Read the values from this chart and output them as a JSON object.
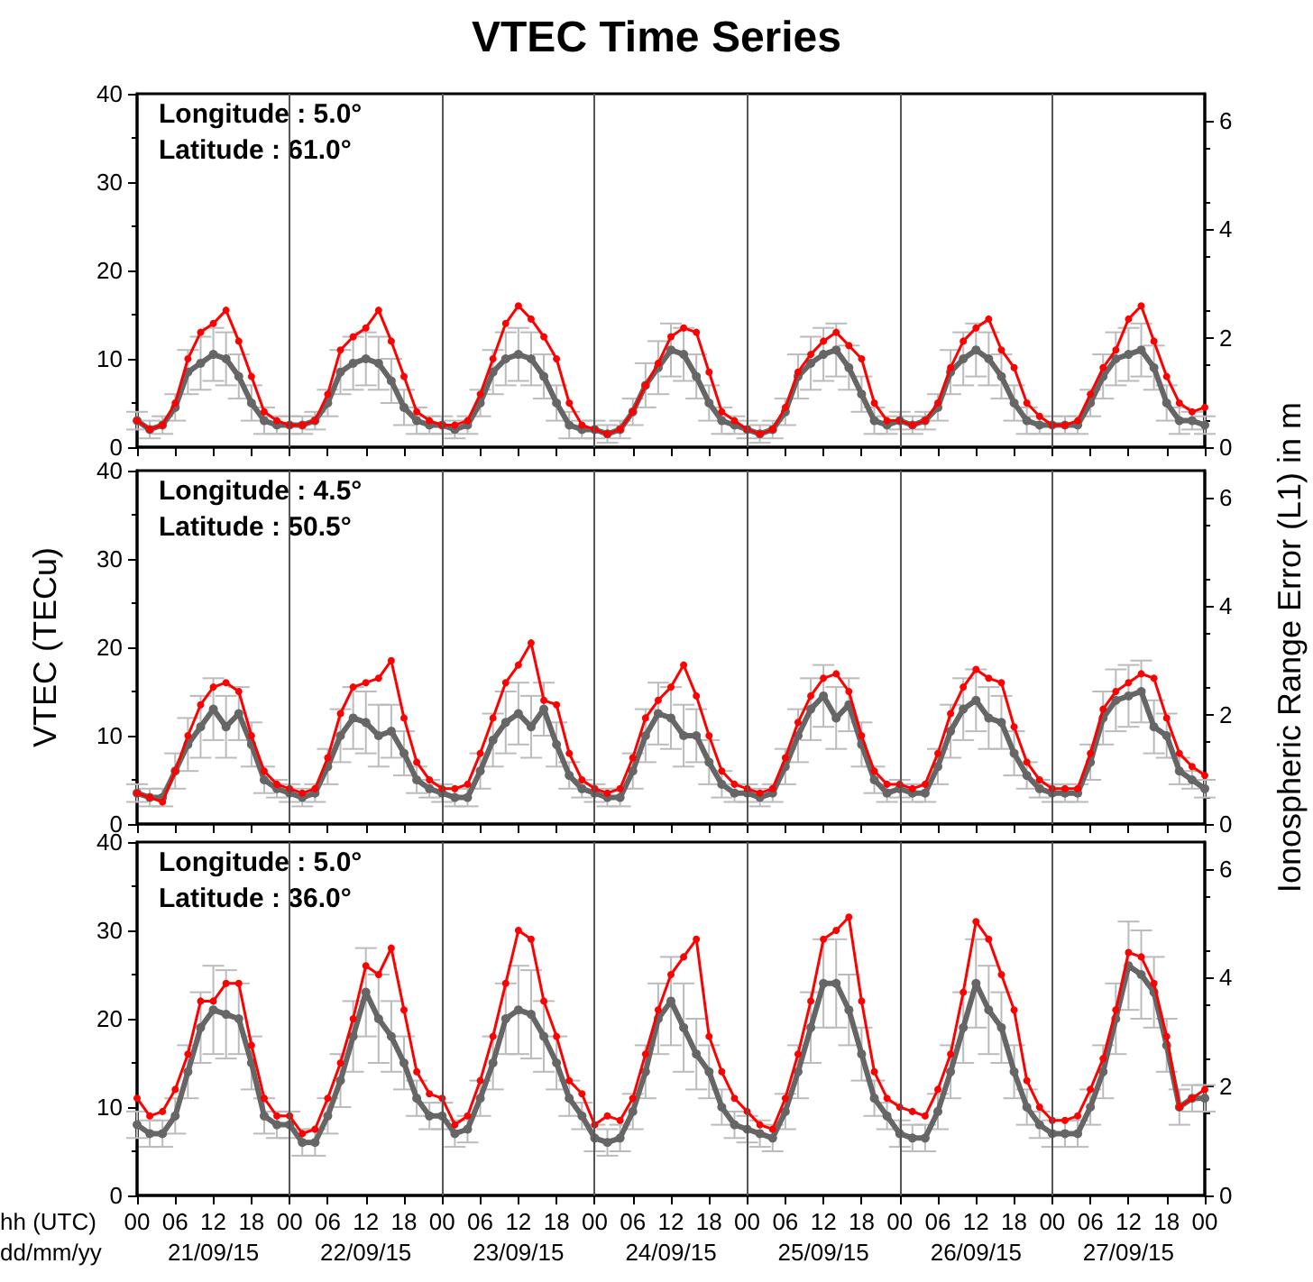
{
  "chart_data": [
    {
      "type": "line",
      "title": "VTEC Time Series",
      "x": [
        "--09-21T00:00",
        "--09-21T02:00",
        "--09-21T04:00",
        "--09-21T06:00",
        "--09-21T08:00",
        "--09-21T10:00",
        "--09-21T12:00",
        "--09-21T14:00",
        "--09-21T16:00",
        "--09-21T18:00",
        "--09-21T20:00",
        "--09-21T22:00",
        "--09-22T00:00",
        "--09-22T02:00",
        "--09-22T04:00",
        "--09-22T06:00",
        "--09-22T08:00",
        "--09-22T10:00",
        "--09-22T12:00",
        "--09-22T14:00",
        "--09-22T16:00",
        "--09-22T18:00",
        "--09-22T20:00",
        "--09-22T22:00",
        "--09-23T00:00",
        "--09-23T02:00",
        "--09-23T04:00",
        "--09-23T06:00",
        "--09-23T08:00",
        "--09-23T10:00",
        "--09-23T12:00",
        "--09-23T14:00",
        "--09-23T16:00",
        "--09-23T18:00",
        "--09-23T20:00",
        "--09-23T22:00",
        "--09-24T00:00",
        "--09-24T02:00",
        "--09-24T04:00",
        "--09-24T06:00",
        "--09-24T08:00",
        "--09-24T10:00",
        "--09-24T12:00",
        "--09-24T14:00",
        "--09-24T16:00",
        "--09-24T18:00",
        "--09-24T20:00",
        "--09-24T22:00",
        "--09-25T00:00",
        "--09-25T02:00",
        "--09-25T04:00",
        "--09-25T06:00",
        "--09-25T08:00",
        "--09-25T10:00",
        "--09-25T12:00",
        "--09-25T14:00",
        "--09-25T16:00",
        "--09-25T18:00",
        "--09-25T20:00",
        "--09-25T22:00",
        "--09-26T00:00",
        "--09-26T02:00",
        "--09-26T04:00",
        "--09-26T06:00",
        "--09-26T08:00",
        "--09-26T10:00",
        "--09-26T12:00",
        "--09-26T14:00",
        "--09-26T16:00",
        "--09-26T18:00",
        "--09-26T20:00",
        "--09-26T22:00",
        "--09-27T00:00",
        "--09-27T02:00",
        "--09-27T04:00",
        "--09-27T06:00",
        "--09-27T08:00",
        "--09-27T10:00",
        "--09-27T12:00",
        "--09-27T14:00",
        "--09-27T16:00",
        "--09-27T18:00",
        "--09-27T20:00",
        "--09-27T22:00",
        "--09-28T00:00"
      ],
      "series": [
        {
          "color": "#666666",
          "values": [
            3,
            2,
            2.5,
            4.5,
            8.5,
            9.5,
            10.5,
            10,
            8,
            5,
            3,
            2.5,
            2.5,
            2.5,
            3,
            5,
            8.5,
            9.5,
            10,
            9.5,
            7.5,
            4.5,
            3,
            2.5,
            2.5,
            2,
            2.5,
            5,
            8.5,
            10,
            10.5,
            10,
            8,
            5,
            2.5,
            2,
            2,
            1.5,
            2,
            4,
            7,
            9,
            11,
            10.5,
            8,
            5,
            3,
            2.5,
            2,
            1.5,
            2,
            4,
            8,
            9.5,
            10.5,
            11,
            9,
            6,
            3,
            2.5,
            3,
            2.5,
            3,
            4.5,
            8.5,
            10,
            11,
            10,
            8,
            5,
            3,
            2.5,
            2.5,
            2.5,
            2.5,
            5,
            8,
            10,
            10.5,
            11,
            9,
            5,
            3,
            3,
            2.5
          ],
          "errors": [
            1,
            1,
            1,
            1.5,
            2.5,
            3,
            3,
            3,
            2.5,
            2,
            1.5,
            1,
            1,
            1,
            1,
            1.5,
            2.5,
            3,
            3,
            3,
            2.5,
            2,
            1.5,
            1,
            1,
            1,
            1,
            1.5,
            2.5,
            3,
            3,
            3,
            2.5,
            2,
            1.5,
            1,
            1,
            1,
            1,
            1.5,
            2.5,
            3,
            3,
            3,
            2.5,
            2,
            1.5,
            1,
            1,
            1,
            1,
            1.5,
            2.5,
            3,
            3,
            3,
            2.5,
            2,
            1.5,
            1,
            1,
            1,
            1,
            1.5,
            2.5,
            3,
            3,
            3,
            2.5,
            2,
            1.5,
            1,
            1,
            1,
            1,
            1.5,
            2.5,
            3,
            3,
            3,
            2.5,
            2,
            1.5,
            1,
            1
          ]
        },
        {
          "color": "#ff0000",
          "values": [
            3,
            2,
            2.5,
            5,
            10,
            13,
            14,
            15.5,
            12,
            8,
            4,
            3,
            2.5,
            2.5,
            3,
            6,
            11,
            12.5,
            13.5,
            15.5,
            12,
            8,
            4,
            3,
            2.5,
            2.5,
            3,
            6,
            10,
            14,
            16,
            14.5,
            12.5,
            10,
            5,
            2.5,
            2,
            1.5,
            2,
            4,
            7,
            9.5,
            12.5,
            13.5,
            13,
            8.5,
            4,
            3,
            2,
            1.5,
            2,
            4.5,
            8.5,
            10.5,
            12,
            13,
            11.5,
            10,
            5,
            3,
            3,
            2.5,
            3,
            5,
            9,
            12,
            13.5,
            14.5,
            11,
            9,
            5,
            3.5,
            2.5,
            2.5,
            3,
            6,
            9,
            11,
            14.5,
            16,
            12,
            8,
            5,
            4,
            4.5
          ]
        }
      ],
      "ylim": [
        0,
        40
      ],
      "yticks": [
        0,
        10,
        20,
        30,
        40
      ],
      "y2lim": [
        0,
        6.49
      ],
      "y2ticks": [
        0,
        2,
        4,
        6
      ],
      "xlim": [
        "--09-21T00:00",
        "--09-28T00:00"
      ],
      "xticks": [
        "--09-21T00:00",
        "--09-21T06:00",
        "--09-21T12:00",
        "--09-21T18:00",
        "--09-22T00:00",
        "--09-22T06:00",
        "--09-22T12:00",
        "--09-22T18:00",
        "--09-23T00:00",
        "--09-23T06:00",
        "--09-23T12:00",
        "--09-23T18:00",
        "--09-24T00:00",
        "--09-24T06:00",
        "--09-24T12:00",
        "--09-24T18:00",
        "--09-25T00:00",
        "--09-25T06:00",
        "--09-25T12:00",
        "--09-25T18:00",
        "--09-26T00:00",
        "--09-26T06:00",
        "--09-26T12:00",
        "--09-26T18:00",
        "--09-27T00:00",
        "--09-27T06:00",
        "--09-27T12:00",
        "--09-27T18:00",
        "--09-28T00:00"
      ],
      "tick_labels": "y",
      "marker": "circle",
      "line_style": "solid",
      "ref_lines": [
        {
          "axis": "x",
          "value": "--09-22T00:00"
        },
        {
          "axis": "x",
          "value": "--09-23T00:00"
        },
        {
          "axis": "x",
          "value": "--09-24T00:00"
        },
        {
          "axis": "x",
          "value": "--09-25T00:00"
        },
        {
          "axis": "x",
          "value": "--09-26T00:00"
        },
        {
          "axis": "x",
          "value": "--09-27T00:00"
        }
      ],
      "annotations": [
        "Longitude : 5.0°",
        "Latitude : 61.0°"
      ]
    },
    {
      "type": "line",
      "ylabel": "VTEC (TECu)",
      "y2label": "Ionospheric Range Error (L1) in m",
      "x": [
        "--09-21T00:00",
        "--09-21T02:00",
        "--09-21T04:00",
        "--09-21T06:00",
        "--09-21T08:00",
        "--09-21T10:00",
        "--09-21T12:00",
        "--09-21T14:00",
        "--09-21T16:00",
        "--09-21T18:00",
        "--09-21T20:00",
        "--09-21T22:00",
        "--09-22T00:00",
        "--09-22T02:00",
        "--09-22T04:00",
        "--09-22T06:00",
        "--09-22T08:00",
        "--09-22T10:00",
        "--09-22T12:00",
        "--09-22T14:00",
        "--09-22T16:00",
        "--09-22T18:00",
        "--09-22T20:00",
        "--09-22T22:00",
        "--09-23T00:00",
        "--09-23T02:00",
        "--09-23T04:00",
        "--09-23T06:00",
        "--09-23T08:00",
        "--09-23T10:00",
        "--09-23T12:00",
        "--09-23T14:00",
        "--09-23T16:00",
        "--09-23T18:00",
        "--09-23T20:00",
        "--09-23T22:00",
        "--09-24T00:00",
        "--09-24T02:00",
        "--09-24T04:00",
        "--09-24T06:00",
        "--09-24T08:00",
        "--09-24T10:00",
        "--09-24T12:00",
        "--09-24T14:00",
        "--09-24T16:00",
        "--09-24T18:00",
        "--09-24T20:00",
        "--09-24T22:00",
        "--09-25T00:00",
        "--09-25T02:00",
        "--09-25T04:00",
        "--09-25T06:00",
        "--09-25T08:00",
        "--09-25T10:00",
        "--09-25T12:00",
        "--09-25T14:00",
        "--09-25T16:00",
        "--09-25T18:00",
        "--09-25T20:00",
        "--09-25T22:00",
        "--09-26T00:00",
        "--09-26T02:00",
        "--09-26T04:00",
        "--09-26T06:00",
        "--09-26T08:00",
        "--09-26T10:00",
        "--09-26T12:00",
        "--09-26T14:00",
        "--09-26T16:00",
        "--09-26T18:00",
        "--09-26T20:00",
        "--09-26T22:00",
        "--09-27T00:00",
        "--09-27T02:00",
        "--09-27T04:00",
        "--09-27T06:00",
        "--09-27T08:00",
        "--09-27T10:00",
        "--09-27T12:00",
        "--09-27T14:00",
        "--09-27T16:00",
        "--09-27T18:00",
        "--09-27T20:00",
        "--09-27T22:00",
        "--09-28T00:00"
      ],
      "series": [
        {
          "color": "#666666",
          "values": [
            3.5,
            3,
            3,
            6,
            9,
            11,
            13,
            11,
            12.5,
            9,
            5,
            4,
            3.5,
            3,
            3.5,
            6.5,
            10,
            12,
            11.5,
            10,
            10.5,
            8,
            5,
            4,
            3.5,
            3,
            3,
            6,
            9.5,
            11.5,
            12.5,
            11,
            13,
            9,
            5.5,
            4,
            3.5,
            3,
            3,
            6,
            10,
            12.5,
            12,
            10,
            10,
            7,
            4.5,
            3.5,
            3.5,
            3,
            3.5,
            6.5,
            10,
            13,
            14.5,
            12,
            13.5,
            9,
            5,
            3.5,
            4,
            3.5,
            3.5,
            6.5,
            10.5,
            13,
            14,
            12,
            11.5,
            8,
            5.5,
            4,
            3.5,
            3.5,
            3.5,
            7,
            12,
            14,
            14.5,
            15,
            11,
            10,
            6,
            5,
            4
          ],
          "errors": [
            1,
            1,
            1,
            2,
            3,
            3.5,
            3.5,
            3.5,
            3,
            2.5,
            1.5,
            1,
            1,
            1,
            1,
            2,
            3,
            3.5,
            3.5,
            3.5,
            3,
            2.5,
            1.5,
            1,
            1,
            1,
            1,
            2,
            3,
            3.5,
            3.5,
            3.5,
            3,
            2.5,
            1.5,
            1,
            1,
            1,
            1,
            2,
            3,
            3.5,
            3.5,
            3.5,
            3,
            2.5,
            1.5,
            1,
            1,
            1,
            1,
            2,
            3,
            3.5,
            3.5,
            3.5,
            3,
            2.5,
            1.5,
            1,
            1,
            1,
            1,
            2,
            3,
            3.5,
            3.5,
            3.5,
            3,
            2.5,
            1.5,
            1,
            1,
            1,
            1,
            2,
            3,
            3.5,
            3.5,
            3.5,
            3,
            2.5,
            1.5,
            1,
            1
          ]
        },
        {
          "color": "#ff0000",
          "values": [
            3.5,
            3,
            2.5,
            6,
            10,
            13.5,
            15.5,
            16,
            15,
            10,
            6,
            4.5,
            4,
            3.5,
            4,
            7.5,
            12.5,
            15.5,
            16,
            16.5,
            18.5,
            12,
            7,
            5,
            4,
            4,
            4.5,
            8,
            12,
            16,
            18,
            20.5,
            14,
            13.5,
            8,
            5,
            4,
            3.5,
            4,
            7.5,
            12,
            14,
            15.5,
            18,
            14.5,
            10,
            6,
            4.5,
            4,
            3.5,
            4,
            7.5,
            11.5,
            14.5,
            16.5,
            17,
            15,
            10,
            6,
            4.5,
            4.5,
            4,
            4.5,
            8,
            12.5,
            15.5,
            17.5,
            16.5,
            16,
            11,
            7,
            5,
            4,
            4,
            4,
            8,
            13,
            15,
            16,
            17,
            16.5,
            12,
            8,
            6.5,
            5.5
          ]
        }
      ],
      "ylim": [
        0,
        40
      ],
      "yticks": [
        0,
        10,
        20,
        30,
        40
      ],
      "y2lim": [
        0,
        6.49
      ],
      "y2ticks": [
        0,
        2,
        4,
        6
      ],
      "xlim": [
        "--09-21T00:00",
        "--09-28T00:00"
      ],
      "xticks": [
        "--09-21T00:00",
        "--09-21T06:00",
        "--09-21T12:00",
        "--09-21T18:00",
        "--09-22T00:00",
        "--09-22T06:00",
        "--09-22T12:00",
        "--09-22T18:00",
        "--09-23T00:00",
        "--09-23T06:00",
        "--09-23T12:00",
        "--09-23T18:00",
        "--09-24T00:00",
        "--09-24T06:00",
        "--09-24T12:00",
        "--09-24T18:00",
        "--09-25T00:00",
        "--09-25T06:00",
        "--09-25T12:00",
        "--09-25T18:00",
        "--09-26T00:00",
        "--09-26T06:00",
        "--09-26T12:00",
        "--09-26T18:00",
        "--09-27T00:00",
        "--09-27T06:00",
        "--09-27T12:00",
        "--09-27T18:00",
        "--09-28T00:00"
      ],
      "tick_labels": "y",
      "marker": "circle",
      "line_style": "solid",
      "ref_lines": [
        {
          "axis": "x",
          "value": "--09-22T00:00"
        },
        {
          "axis": "x",
          "value": "--09-23T00:00"
        },
        {
          "axis": "x",
          "value": "--09-24T00:00"
        },
        {
          "axis": "x",
          "value": "--09-25T00:00"
        },
        {
          "axis": "x",
          "value": "--09-26T00:00"
        },
        {
          "axis": "x",
          "value": "--09-27T00:00"
        }
      ],
      "annotations": [
        "Longitude : 4.5°",
        "Latitude : 50.5°"
      ]
    },
    {
      "type": "line",
      "x": [
        "--09-21T00:00",
        "--09-21T02:00",
        "--09-21T04:00",
        "--09-21T06:00",
        "--09-21T08:00",
        "--09-21T10:00",
        "--09-21T12:00",
        "--09-21T14:00",
        "--09-21T16:00",
        "--09-21T18:00",
        "--09-21T20:00",
        "--09-21T22:00",
        "--09-22T00:00",
        "--09-22T02:00",
        "--09-22T04:00",
        "--09-22T06:00",
        "--09-22T08:00",
        "--09-22T10:00",
        "--09-22T12:00",
        "--09-22T14:00",
        "--09-22T16:00",
        "--09-22T18:00",
        "--09-22T20:00",
        "--09-22T22:00",
        "--09-23T00:00",
        "--09-23T02:00",
        "--09-23T04:00",
        "--09-23T06:00",
        "--09-23T08:00",
        "--09-23T10:00",
        "--09-23T12:00",
        "--09-23T14:00",
        "--09-23T16:00",
        "--09-23T18:00",
        "--09-23T20:00",
        "--09-23T22:00",
        "--09-24T00:00",
        "--09-24T02:00",
        "--09-24T04:00",
        "--09-24T06:00",
        "--09-24T08:00",
        "--09-24T10:00",
        "--09-24T12:00",
        "--09-24T14:00",
        "--09-24T16:00",
        "--09-24T18:00",
        "--09-24T20:00",
        "--09-24T22:00",
        "--09-25T00:00",
        "--09-25T02:00",
        "--09-25T04:00",
        "--09-25T06:00",
        "--09-25T08:00",
        "--09-25T10:00",
        "--09-25T12:00",
        "--09-25T14:00",
        "--09-25T16:00",
        "--09-25T18:00",
        "--09-25T20:00",
        "--09-25T22:00",
        "--09-26T00:00",
        "--09-26T02:00",
        "--09-26T04:00",
        "--09-26T06:00",
        "--09-26T08:00",
        "--09-26T10:00",
        "--09-26T12:00",
        "--09-26T14:00",
        "--09-26T16:00",
        "--09-26T18:00",
        "--09-26T20:00",
        "--09-26T22:00",
        "--09-27T00:00",
        "--09-27T02:00",
        "--09-27T04:00",
        "--09-27T06:00",
        "--09-27T08:00",
        "--09-27T10:00",
        "--09-27T12:00",
        "--09-27T14:00",
        "--09-27T16:00",
        "--09-27T18:00",
        "--09-27T20:00",
        "--09-27T22:00",
        "--09-28T00:00"
      ],
      "series": [
        {
          "color": "#666666",
          "values": [
            8,
            7,
            7,
            9,
            14,
            19,
            21,
            20.5,
            20,
            15,
            9,
            8,
            8,
            6,
            6,
            9,
            13,
            18,
            23,
            20,
            18,
            15,
            11,
            9,
            9,
            7,
            7.5,
            11,
            15,
            20,
            21,
            20.5,
            18,
            15,
            11,
            9,
            6.5,
            6,
            6.5,
            9.5,
            14,
            20,
            22,
            19,
            16,
            14,
            10,
            8,
            7.5,
            7,
            6.5,
            9.5,
            14,
            19,
            24,
            24,
            21,
            16,
            11,
            9,
            7,
            6.5,
            6.5,
            9.5,
            14,
            19,
            24,
            21,
            19,
            14,
            10,
            8,
            7,
            7,
            7,
            10,
            14,
            20,
            26,
            25,
            23,
            17,
            10,
            11,
            11
          ],
          "errors": [
            1.5,
            1.5,
            1.5,
            2,
            3,
            4,
            5,
            5,
            4,
            3,
            2,
            1.5,
            1.5,
            1.5,
            1.5,
            2,
            3,
            4,
            5,
            5,
            4,
            3,
            2,
            1.5,
            1.5,
            1.5,
            1.5,
            2,
            3,
            4,
            5,
            5,
            4,
            3,
            2,
            1.5,
            1.5,
            1.5,
            1.5,
            2,
            3,
            4,
            5,
            5,
            4,
            3,
            2,
            1.5,
            1.5,
            1.5,
            1.5,
            2,
            3,
            4,
            5,
            5,
            4,
            3,
            2,
            1.5,
            1.5,
            1.5,
            1.5,
            2,
            3,
            4,
            5,
            5,
            4,
            3,
            2,
            1.5,
            1.5,
            1.5,
            1.5,
            2,
            3,
            4,
            5,
            5,
            4,
            3,
            2,
            1.5,
            1.5
          ]
        },
        {
          "color": "#ff0000",
          "values": [
            11,
            9,
            9.5,
            12,
            16,
            22,
            22,
            24,
            24,
            17,
            11,
            9,
            9,
            7,
            7.5,
            11,
            15,
            20,
            26,
            25,
            28,
            21,
            14,
            11.5,
            11,
            8,
            9,
            13,
            18,
            24,
            30,
            29,
            22,
            18,
            13,
            11.5,
            8,
            9,
            8.5,
            11,
            16,
            21,
            25,
            27,
            29,
            18,
            14,
            11,
            9.5,
            8,
            7.5,
            11,
            16,
            22,
            29,
            30,
            31.5,
            22,
            14,
            11,
            10,
            9.5,
            9,
            12,
            16,
            23,
            31,
            29,
            25,
            21,
            13,
            10,
            8.5,
            8.5,
            9,
            12,
            15.5,
            21,
            27.5,
            27,
            24,
            18,
            10,
            11,
            12
          ]
        }
      ],
      "ylim": [
        0,
        40
      ],
      "yticks": [
        0,
        10,
        20,
        30,
        40
      ],
      "y2lim": [
        0,
        6.49
      ],
      "y2ticks": [
        0,
        2,
        4,
        6
      ],
      "xlim": [
        "--09-21T00:00",
        "--09-28T00:00"
      ],
      "xticks": [
        {
          "value": "--09-21T00:00",
          "label": "00"
        },
        {
          "value": "--09-21T06:00",
          "label": "06"
        },
        {
          "value": "--09-21T12:00",
          "label": "12\n21/09/15"
        },
        {
          "value": "--09-21T18:00",
          "label": "18"
        },
        {
          "value": "--09-22T00:00",
          "label": "00"
        },
        {
          "value": "--09-22T06:00",
          "label": "06"
        },
        {
          "value": "--09-22T12:00",
          "label": "12\n22/09/15"
        },
        {
          "value": "--09-22T18:00",
          "label": "18"
        },
        {
          "value": "--09-23T00:00",
          "label": "00"
        },
        {
          "value": "--09-23T06:00",
          "label": "06"
        },
        {
          "value": "--09-23T12:00",
          "label": "12\n23/09/15"
        },
        {
          "value": "--09-23T18:00",
          "label": "18"
        },
        {
          "value": "--09-24T00:00",
          "label": "00"
        },
        {
          "value": "--09-24T06:00",
          "label": "06"
        },
        {
          "value": "--09-24T12:00",
          "label": "12\n24/09/15"
        },
        {
          "value": "--09-24T18:00",
          "label": "18"
        },
        {
          "value": "--09-25T00:00",
          "label": "00"
        },
        {
          "value": "--09-25T06:00",
          "label": "06"
        },
        {
          "value": "--09-25T12:00",
          "label": "12\n25/09/15"
        },
        {
          "value": "--09-25T18:00",
          "label": "18"
        },
        {
          "value": "--09-26T00:00",
          "label": "00"
        },
        {
          "value": "--09-26T06:00",
          "label": "06"
        },
        {
          "value": "--09-26T12:00",
          "label": "12\n26/09/15"
        },
        {
          "value": "--09-26T18:00",
          "label": "18"
        },
        {
          "value": "--09-27T00:00",
          "label": "00"
        },
        {
          "value": "--09-27T06:00",
          "label": "06"
        },
        {
          "value": "--09-27T12:00",
          "label": "12\n27/09/15"
        },
        {
          "value": "--09-27T18:00",
          "label": "18"
        },
        {
          "value": "--09-28T00:00",
          "label": "00"
        }
      ],
      "marker": "circle",
      "line_style": "solid",
      "ref_lines": [
        {
          "axis": "x",
          "value": "--09-22T00:00"
        },
        {
          "axis": "x",
          "value": "--09-23T00:00"
        },
        {
          "axis": "x",
          "value": "--09-24T00:00"
        },
        {
          "axis": "x",
          "value": "--09-25T00:00"
        },
        {
          "axis": "x",
          "value": "--09-26T00:00"
        },
        {
          "axis": "x",
          "value": "--09-27T00:00"
        }
      ],
      "annotations": [
        "Longitude : 5.0°",
        "Latitude : 36.0°",
        "hh (UTC)",
        "dd/mm/yy"
      ]
    }
  ]
}
